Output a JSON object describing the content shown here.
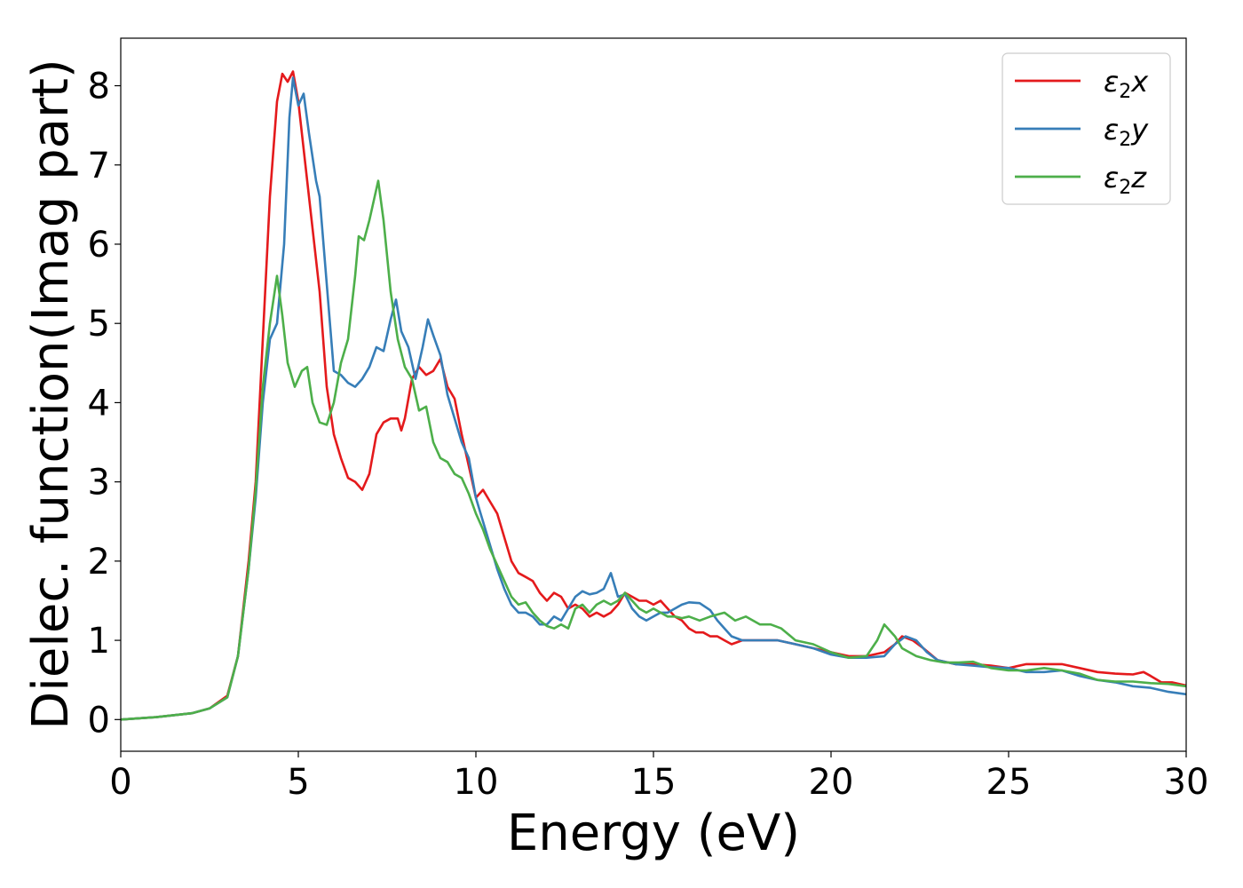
{
  "chart_data": {
    "type": "line",
    "title": "",
    "xlabel": "Energy (eV)",
    "ylabel": "Dielec. function(Imag part)",
    "xlim": [
      0,
      30
    ],
    "ylim": [
      -0.4,
      8.6
    ],
    "xticks": [
      0,
      5,
      10,
      15,
      20,
      25,
      30
    ],
    "yticks": [
      0,
      1,
      2,
      3,
      4,
      5,
      6,
      7,
      8
    ],
    "grid": false,
    "legend_position": "top-right",
    "series": [
      {
        "name": "ε₂x",
        "legend": {
          "base": "ε",
          "sub": "2",
          "suffix": "x"
        },
        "color": "#e41a1c",
        "points": [
          [
            0,
            0
          ],
          [
            1,
            0.03
          ],
          [
            2,
            0.08
          ],
          [
            2.5,
            0.14
          ],
          [
            3,
            0.3
          ],
          [
            3.3,
            0.8
          ],
          [
            3.6,
            2.0
          ],
          [
            3.8,
            3.0
          ],
          [
            4.0,
            4.8
          ],
          [
            4.2,
            6.6
          ],
          [
            4.4,
            7.8
          ],
          [
            4.55,
            8.15
          ],
          [
            4.7,
            8.05
          ],
          [
            4.85,
            8.18
          ],
          [
            5.0,
            7.8
          ],
          [
            5.2,
            7.0
          ],
          [
            5.4,
            6.2
          ],
          [
            5.6,
            5.4
          ],
          [
            5.8,
            4.2
          ],
          [
            6.0,
            3.6
          ],
          [
            6.2,
            3.3
          ],
          [
            6.4,
            3.05
          ],
          [
            6.6,
            3.0
          ],
          [
            6.8,
            2.9
          ],
          [
            7.0,
            3.1
          ],
          [
            7.2,
            3.6
          ],
          [
            7.4,
            3.75
          ],
          [
            7.6,
            3.8
          ],
          [
            7.8,
            3.8
          ],
          [
            7.9,
            3.65
          ],
          [
            8.0,
            3.8
          ],
          [
            8.2,
            4.3
          ],
          [
            8.4,
            4.45
          ],
          [
            8.6,
            4.35
          ],
          [
            8.8,
            4.4
          ],
          [
            9.0,
            4.55
          ],
          [
            9.2,
            4.2
          ],
          [
            9.4,
            4.05
          ],
          [
            9.6,
            3.6
          ],
          [
            9.8,
            3.2
          ],
          [
            10.0,
            2.8
          ],
          [
            10.2,
            2.9
          ],
          [
            10.4,
            2.75
          ],
          [
            10.6,
            2.6
          ],
          [
            10.8,
            2.3
          ],
          [
            11.0,
            2.0
          ],
          [
            11.2,
            1.85
          ],
          [
            11.4,
            1.8
          ],
          [
            11.6,
            1.75
          ],
          [
            11.8,
            1.6
          ],
          [
            12.0,
            1.5
          ],
          [
            12.2,
            1.6
          ],
          [
            12.4,
            1.55
          ],
          [
            12.6,
            1.4
          ],
          [
            12.8,
            1.45
          ],
          [
            13.0,
            1.4
          ],
          [
            13.2,
            1.3
          ],
          [
            13.4,
            1.35
          ],
          [
            13.6,
            1.3
          ],
          [
            13.8,
            1.35
          ],
          [
            14.0,
            1.45
          ],
          [
            14.2,
            1.6
          ],
          [
            14.4,
            1.55
          ],
          [
            14.6,
            1.5
          ],
          [
            14.8,
            1.5
          ],
          [
            15.0,
            1.45
          ],
          [
            15.2,
            1.5
          ],
          [
            15.4,
            1.4
          ],
          [
            15.6,
            1.3
          ],
          [
            15.8,
            1.25
          ],
          [
            16.0,
            1.15
          ],
          [
            16.2,
            1.1
          ],
          [
            16.4,
            1.1
          ],
          [
            16.6,
            1.05
          ],
          [
            16.8,
            1.05
          ],
          [
            17.0,
            1.0
          ],
          [
            17.2,
            0.95
          ],
          [
            17.5,
            1.0
          ],
          [
            18.0,
            1.0
          ],
          [
            18.5,
            1.0
          ],
          [
            19.0,
            0.95
          ],
          [
            19.5,
            0.9
          ],
          [
            20.0,
            0.85
          ],
          [
            20.5,
            0.8
          ],
          [
            21.0,
            0.8
          ],
          [
            21.5,
            0.85
          ],
          [
            21.8,
            0.95
          ],
          [
            22.0,
            1.05
          ],
          [
            22.3,
            1.0
          ],
          [
            22.6,
            0.9
          ],
          [
            23.0,
            0.75
          ],
          [
            23.5,
            0.7
          ],
          [
            24.0,
            0.7
          ],
          [
            24.5,
            0.68
          ],
          [
            25.0,
            0.65
          ],
          [
            25.5,
            0.7
          ],
          [
            26.0,
            0.7
          ],
          [
            26.5,
            0.7
          ],
          [
            27.0,
            0.65
          ],
          [
            27.5,
            0.6
          ],
          [
            28.0,
            0.58
          ],
          [
            28.5,
            0.57
          ],
          [
            28.8,
            0.6
          ],
          [
            29.0,
            0.55
          ],
          [
            29.3,
            0.47
          ],
          [
            29.6,
            0.47
          ],
          [
            30.0,
            0.43
          ]
        ]
      },
      {
        "name": "ε₂y",
        "legend": {
          "base": "ε",
          "sub": "2",
          "suffix": "y"
        },
        "color": "#377eb8",
        "points": [
          [
            0,
            0
          ],
          [
            1,
            0.03
          ],
          [
            2,
            0.08
          ],
          [
            2.5,
            0.14
          ],
          [
            3,
            0.28
          ],
          [
            3.3,
            0.8
          ],
          [
            3.6,
            1.9
          ],
          [
            3.8,
            2.8
          ],
          [
            4.0,
            4.0
          ],
          [
            4.2,
            4.8
          ],
          [
            4.4,
            5.0
          ],
          [
            4.6,
            6.0
          ],
          [
            4.75,
            7.6
          ],
          [
            4.85,
            8.1
          ],
          [
            5.0,
            7.75
          ],
          [
            5.15,
            7.9
          ],
          [
            5.3,
            7.4
          ],
          [
            5.5,
            6.8
          ],
          [
            5.6,
            6.6
          ],
          [
            5.8,
            5.5
          ],
          [
            6.0,
            4.4
          ],
          [
            6.2,
            4.35
          ],
          [
            6.4,
            4.25
          ],
          [
            6.6,
            4.2
          ],
          [
            6.8,
            4.3
          ],
          [
            7.0,
            4.45
          ],
          [
            7.2,
            4.7
          ],
          [
            7.4,
            4.65
          ],
          [
            7.6,
            5.05
          ],
          [
            7.75,
            5.3
          ],
          [
            7.9,
            4.9
          ],
          [
            8.1,
            4.7
          ],
          [
            8.3,
            4.3
          ],
          [
            8.5,
            4.7
          ],
          [
            8.65,
            5.05
          ],
          [
            8.8,
            4.85
          ],
          [
            9.0,
            4.6
          ],
          [
            9.2,
            4.1
          ],
          [
            9.4,
            3.8
          ],
          [
            9.6,
            3.5
          ],
          [
            9.8,
            3.3
          ],
          [
            10.0,
            2.8
          ],
          [
            10.2,
            2.5
          ],
          [
            10.4,
            2.2
          ],
          [
            10.6,
            1.9
          ],
          [
            10.8,
            1.65
          ],
          [
            11.0,
            1.45
          ],
          [
            11.2,
            1.35
          ],
          [
            11.4,
            1.35
          ],
          [
            11.6,
            1.3
          ],
          [
            11.8,
            1.2
          ],
          [
            12.0,
            1.2
          ],
          [
            12.2,
            1.3
          ],
          [
            12.4,
            1.25
          ],
          [
            12.6,
            1.4
          ],
          [
            12.8,
            1.55
          ],
          [
            13.0,
            1.62
          ],
          [
            13.2,
            1.58
          ],
          [
            13.4,
            1.6
          ],
          [
            13.6,
            1.65
          ],
          [
            13.8,
            1.85
          ],
          [
            14.0,
            1.55
          ],
          [
            14.2,
            1.58
          ],
          [
            14.4,
            1.4
          ],
          [
            14.6,
            1.3
          ],
          [
            14.8,
            1.25
          ],
          [
            15.0,
            1.3
          ],
          [
            15.2,
            1.35
          ],
          [
            15.4,
            1.35
          ],
          [
            15.6,
            1.4
          ],
          [
            15.8,
            1.45
          ],
          [
            16.0,
            1.48
          ],
          [
            16.3,
            1.47
          ],
          [
            16.6,
            1.38
          ],
          [
            16.8,
            1.25
          ],
          [
            17.0,
            1.15
          ],
          [
            17.2,
            1.05
          ],
          [
            17.5,
            1.0
          ],
          [
            18.0,
            1.0
          ],
          [
            18.5,
            1.0
          ],
          [
            19.0,
            0.95
          ],
          [
            19.5,
            0.9
          ],
          [
            20.0,
            0.82
          ],
          [
            20.5,
            0.78
          ],
          [
            21.0,
            0.78
          ],
          [
            21.5,
            0.8
          ],
          [
            21.8,
            0.95
          ],
          [
            22.1,
            1.05
          ],
          [
            22.4,
            1.0
          ],
          [
            22.7,
            0.85
          ],
          [
            23.0,
            0.75
          ],
          [
            23.5,
            0.7
          ],
          [
            24.0,
            0.68
          ],
          [
            24.5,
            0.66
          ],
          [
            25.0,
            0.65
          ],
          [
            25.5,
            0.6
          ],
          [
            26.0,
            0.6
          ],
          [
            26.5,
            0.62
          ],
          [
            27.0,
            0.55
          ],
          [
            27.5,
            0.5
          ],
          [
            28.0,
            0.47
          ],
          [
            28.5,
            0.42
          ],
          [
            29.0,
            0.4
          ],
          [
            29.5,
            0.35
          ],
          [
            30.0,
            0.32
          ]
        ]
      },
      {
        "name": "ε₂z",
        "legend": {
          "base": "ε",
          "sub": "2",
          "suffix": "z"
        },
        "color": "#4daf4a",
        "points": [
          [
            0,
            0
          ],
          [
            1,
            0.03
          ],
          [
            2,
            0.08
          ],
          [
            2.5,
            0.14
          ],
          [
            3,
            0.28
          ],
          [
            3.3,
            0.8
          ],
          [
            3.6,
            1.9
          ],
          [
            3.8,
            2.9
          ],
          [
            4.0,
            4.2
          ],
          [
            4.2,
            5.0
          ],
          [
            4.4,
            5.6
          ],
          [
            4.55,
            5.1
          ],
          [
            4.7,
            4.5
          ],
          [
            4.9,
            4.2
          ],
          [
            5.1,
            4.4
          ],
          [
            5.25,
            4.45
          ],
          [
            5.4,
            4.0
          ],
          [
            5.6,
            3.75
          ],
          [
            5.8,
            3.72
          ],
          [
            6.0,
            4.0
          ],
          [
            6.2,
            4.5
          ],
          [
            6.4,
            4.8
          ],
          [
            6.6,
            5.6
          ],
          [
            6.7,
            6.1
          ],
          [
            6.85,
            6.05
          ],
          [
            7.0,
            6.3
          ],
          [
            7.15,
            6.6
          ],
          [
            7.25,
            6.8
          ],
          [
            7.4,
            6.3
          ],
          [
            7.6,
            5.4
          ],
          [
            7.8,
            4.8
          ],
          [
            8.0,
            4.45
          ],
          [
            8.2,
            4.3
          ],
          [
            8.4,
            3.9
          ],
          [
            8.6,
            3.95
          ],
          [
            8.8,
            3.5
          ],
          [
            9.0,
            3.3
          ],
          [
            9.2,
            3.25
          ],
          [
            9.4,
            3.1
          ],
          [
            9.6,
            3.05
          ],
          [
            9.8,
            2.85
          ],
          [
            10.0,
            2.6
          ],
          [
            10.2,
            2.4
          ],
          [
            10.4,
            2.15
          ],
          [
            10.6,
            1.95
          ],
          [
            10.8,
            1.75
          ],
          [
            11.0,
            1.55
          ],
          [
            11.2,
            1.45
          ],
          [
            11.4,
            1.48
          ],
          [
            11.6,
            1.35
          ],
          [
            11.8,
            1.25
          ],
          [
            12.0,
            1.18
          ],
          [
            12.2,
            1.15
          ],
          [
            12.4,
            1.2
          ],
          [
            12.6,
            1.15
          ],
          [
            12.8,
            1.4
          ],
          [
            13.0,
            1.45
          ],
          [
            13.2,
            1.35
          ],
          [
            13.4,
            1.45
          ],
          [
            13.6,
            1.5
          ],
          [
            13.8,
            1.45
          ],
          [
            14.0,
            1.5
          ],
          [
            14.2,
            1.6
          ],
          [
            14.4,
            1.5
          ],
          [
            14.6,
            1.4
          ],
          [
            14.8,
            1.35
          ],
          [
            15.0,
            1.4
          ],
          [
            15.2,
            1.35
          ],
          [
            15.4,
            1.3
          ],
          [
            15.6,
            1.3
          ],
          [
            15.8,
            1.28
          ],
          [
            16.0,
            1.3
          ],
          [
            16.3,
            1.25
          ],
          [
            16.6,
            1.3
          ],
          [
            17.0,
            1.35
          ],
          [
            17.3,
            1.25
          ],
          [
            17.6,
            1.3
          ],
          [
            18.0,
            1.2
          ],
          [
            18.3,
            1.2
          ],
          [
            18.6,
            1.15
          ],
          [
            19.0,
            1.0
          ],
          [
            19.5,
            0.95
          ],
          [
            20.0,
            0.85
          ],
          [
            20.5,
            0.78
          ],
          [
            21.0,
            0.8
          ],
          [
            21.3,
            1.0
          ],
          [
            21.5,
            1.2
          ],
          [
            21.8,
            1.05
          ],
          [
            22.0,
            0.9
          ],
          [
            22.4,
            0.8
          ],
          [
            22.8,
            0.75
          ],
          [
            23.2,
            0.72
          ],
          [
            23.6,
            0.72
          ],
          [
            24.0,
            0.73
          ],
          [
            24.5,
            0.65
          ],
          [
            25.0,
            0.62
          ],
          [
            25.5,
            0.62
          ],
          [
            26.0,
            0.65
          ],
          [
            26.5,
            0.62
          ],
          [
            27.0,
            0.58
          ],
          [
            27.5,
            0.5
          ],
          [
            28.0,
            0.48
          ],
          [
            28.5,
            0.48
          ],
          [
            29.0,
            0.46
          ],
          [
            29.5,
            0.45
          ],
          [
            30.0,
            0.42
          ]
        ]
      }
    ]
  }
}
